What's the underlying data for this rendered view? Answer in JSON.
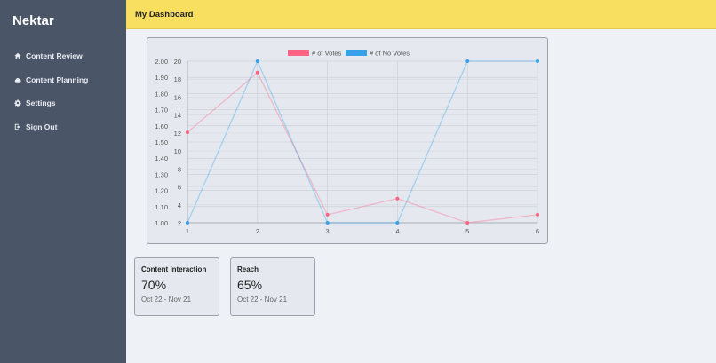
{
  "app": {
    "brand": "Nektar"
  },
  "sidebar": {
    "items": [
      {
        "label": "Content Review",
        "icon": "home-icon"
      },
      {
        "label": "Content Planning",
        "icon": "cloud-icon"
      },
      {
        "label": "Settings",
        "icon": "gear-icon"
      },
      {
        "label": "Sign Out",
        "icon": "sign-out-icon"
      }
    ]
  },
  "header": {
    "title": "My Dashboard"
  },
  "stats": [
    {
      "title": "Content Interaction",
      "value": "70%",
      "range": "Oct 22 - Nov 21"
    },
    {
      "title": "Reach",
      "value": "65%",
      "range": "Oct 22 - Nov 21"
    }
  ],
  "colors": {
    "sidebar": "#4a5568",
    "topbar": "#f8df5f",
    "votes": "#ff6384",
    "no_votes": "#36a2eb"
  },
  "chart_data": {
    "type": "line",
    "x": [
      1,
      2,
      3,
      4,
      5,
      6
    ],
    "series": [
      {
        "name": "# of Votes",
        "axis": "left",
        "color": "#ff6384",
        "values": [
          1.56,
          1.93,
          1.05,
          1.15,
          1.0,
          1.05
        ]
      },
      {
        "name": "# of No Votes",
        "axis": "right",
        "color": "#36a2eb",
        "values": [
          2,
          20,
          2,
          2,
          20,
          20
        ]
      }
    ],
    "y_left": {
      "min": 1.0,
      "max": 2.0,
      "ticks": [
        "2.00",
        "1.90",
        "1.80",
        "1.70",
        "1.60",
        "1.50",
        "1.40",
        "1.30",
        "1.20",
        "1.10",
        "1.00"
      ]
    },
    "y_right": {
      "min": 2,
      "max": 20,
      "ticks": [
        "20",
        "18",
        "16",
        "14",
        "12",
        "10",
        "8",
        "6",
        "4",
        "2"
      ]
    },
    "legend_position": "top",
    "grid": true
  }
}
